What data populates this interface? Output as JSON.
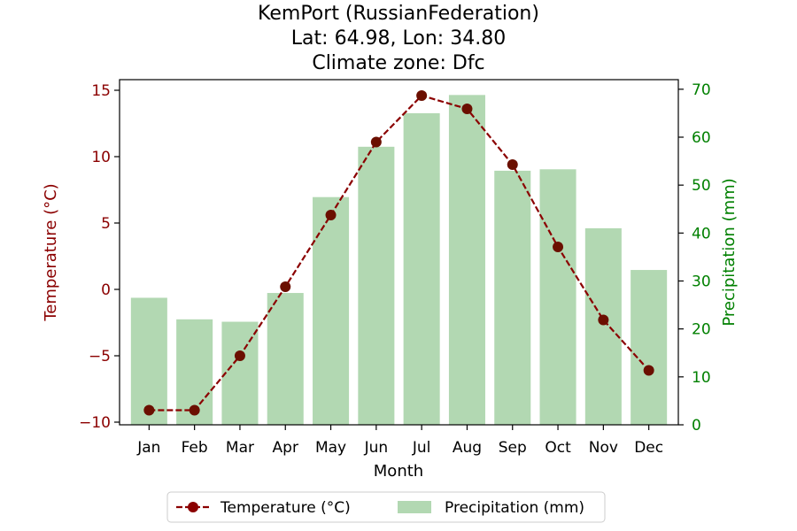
{
  "chart_data": {
    "type": "bar+line",
    "title_lines": [
      "KemPort (RussianFederation)",
      "Lat: 64.98, Lon: 34.80",
      "Climate zone: Dfc"
    ],
    "xlabel": "Month",
    "ylabel_left": "Temperature (°C)",
    "ylabel_right": "Precipitation (mm)",
    "categories": [
      "Jan",
      "Feb",
      "Mar",
      "Apr",
      "May",
      "Jun",
      "Jul",
      "Aug",
      "Sep",
      "Oct",
      "Nov",
      "Dec"
    ],
    "temperature": {
      "name": "Temperature (°C)",
      "values": [
        -9.1,
        -9.1,
        -5.0,
        0.2,
        5.6,
        11.1,
        14.6,
        13.6,
        9.4,
        3.2,
        -2.3,
        -6.1
      ],
      "ylim": [
        -10.2,
        15.8
      ],
      "ticks": [
        -10,
        -5,
        0,
        5,
        10,
        15
      ],
      "color": "#8b0000",
      "marker_color": "#6b0f00"
    },
    "precipitation": {
      "name": "Precipitation (mm)",
      "values": [
        26.5,
        22.0,
        21.5,
        27.5,
        47.5,
        58.0,
        65.0,
        68.8,
        53.0,
        53.3,
        41.0,
        32.3
      ],
      "ylim": [
        0,
        72
      ],
      "ticks": [
        0,
        10,
        20,
        30,
        40,
        50,
        60,
        70
      ],
      "color": "#b2d8b2",
      "label_color": "#008000"
    },
    "legend_position": "bottom-center"
  }
}
